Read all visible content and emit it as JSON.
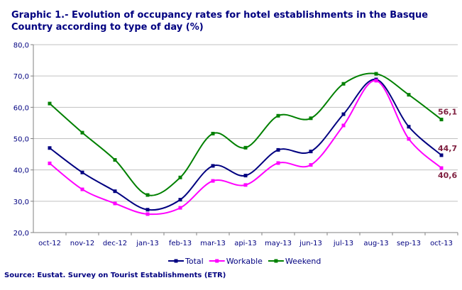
{
  "chart_data": {
    "type": "line",
    "title": "Graphic 1.- Evolution of occupancy rates for hotel establishments in the Basque Country according to type of day (%)",
    "categories": [
      "oct-12",
      "nov-12",
      "dec-12",
      "jan-13",
      "feb-13",
      "mar-13",
      "api-13",
      "may-13",
      "jun-13",
      "jul-13",
      "aug-13",
      "sep-13",
      "oct-13"
    ],
    "ylim": [
      20,
      80
    ],
    "yticks": [
      "20,0",
      "30,0",
      "40,0",
      "50,0",
      "60,0",
      "70,0",
      "80,0"
    ],
    "grid": true,
    "smoothed": true,
    "legend_position": "bottom",
    "series": [
      {
        "name": "Total",
        "color": "#000080",
        "values": [
          47.0,
          39.2,
          33.2,
          27.3,
          30.5,
          41.3,
          38.2,
          46.4,
          45.9,
          57.8,
          68.9,
          53.8,
          44.7
        ],
        "end_label": "44,7"
      },
      {
        "name": "Workable",
        "color": "#ff00ff",
        "values": [
          42.1,
          33.8,
          29.3,
          25.9,
          27.9,
          36.5,
          35.2,
          42.2,
          41.6,
          54.2,
          68.5,
          49.9,
          40.6
        ],
        "end_label": "40,6"
      },
      {
        "name": "Weekend",
        "color": "#008000",
        "values": [
          61.2,
          51.9,
          43.2,
          32.0,
          37.6,
          51.6,
          47.1,
          57.3,
          56.5,
          67.5,
          70.7,
          64.0,
          56.1
        ],
        "end_label": "56,1"
      }
    ],
    "source": "Source: Eustat. Survey on Tourist Establishments (ETR)"
  }
}
